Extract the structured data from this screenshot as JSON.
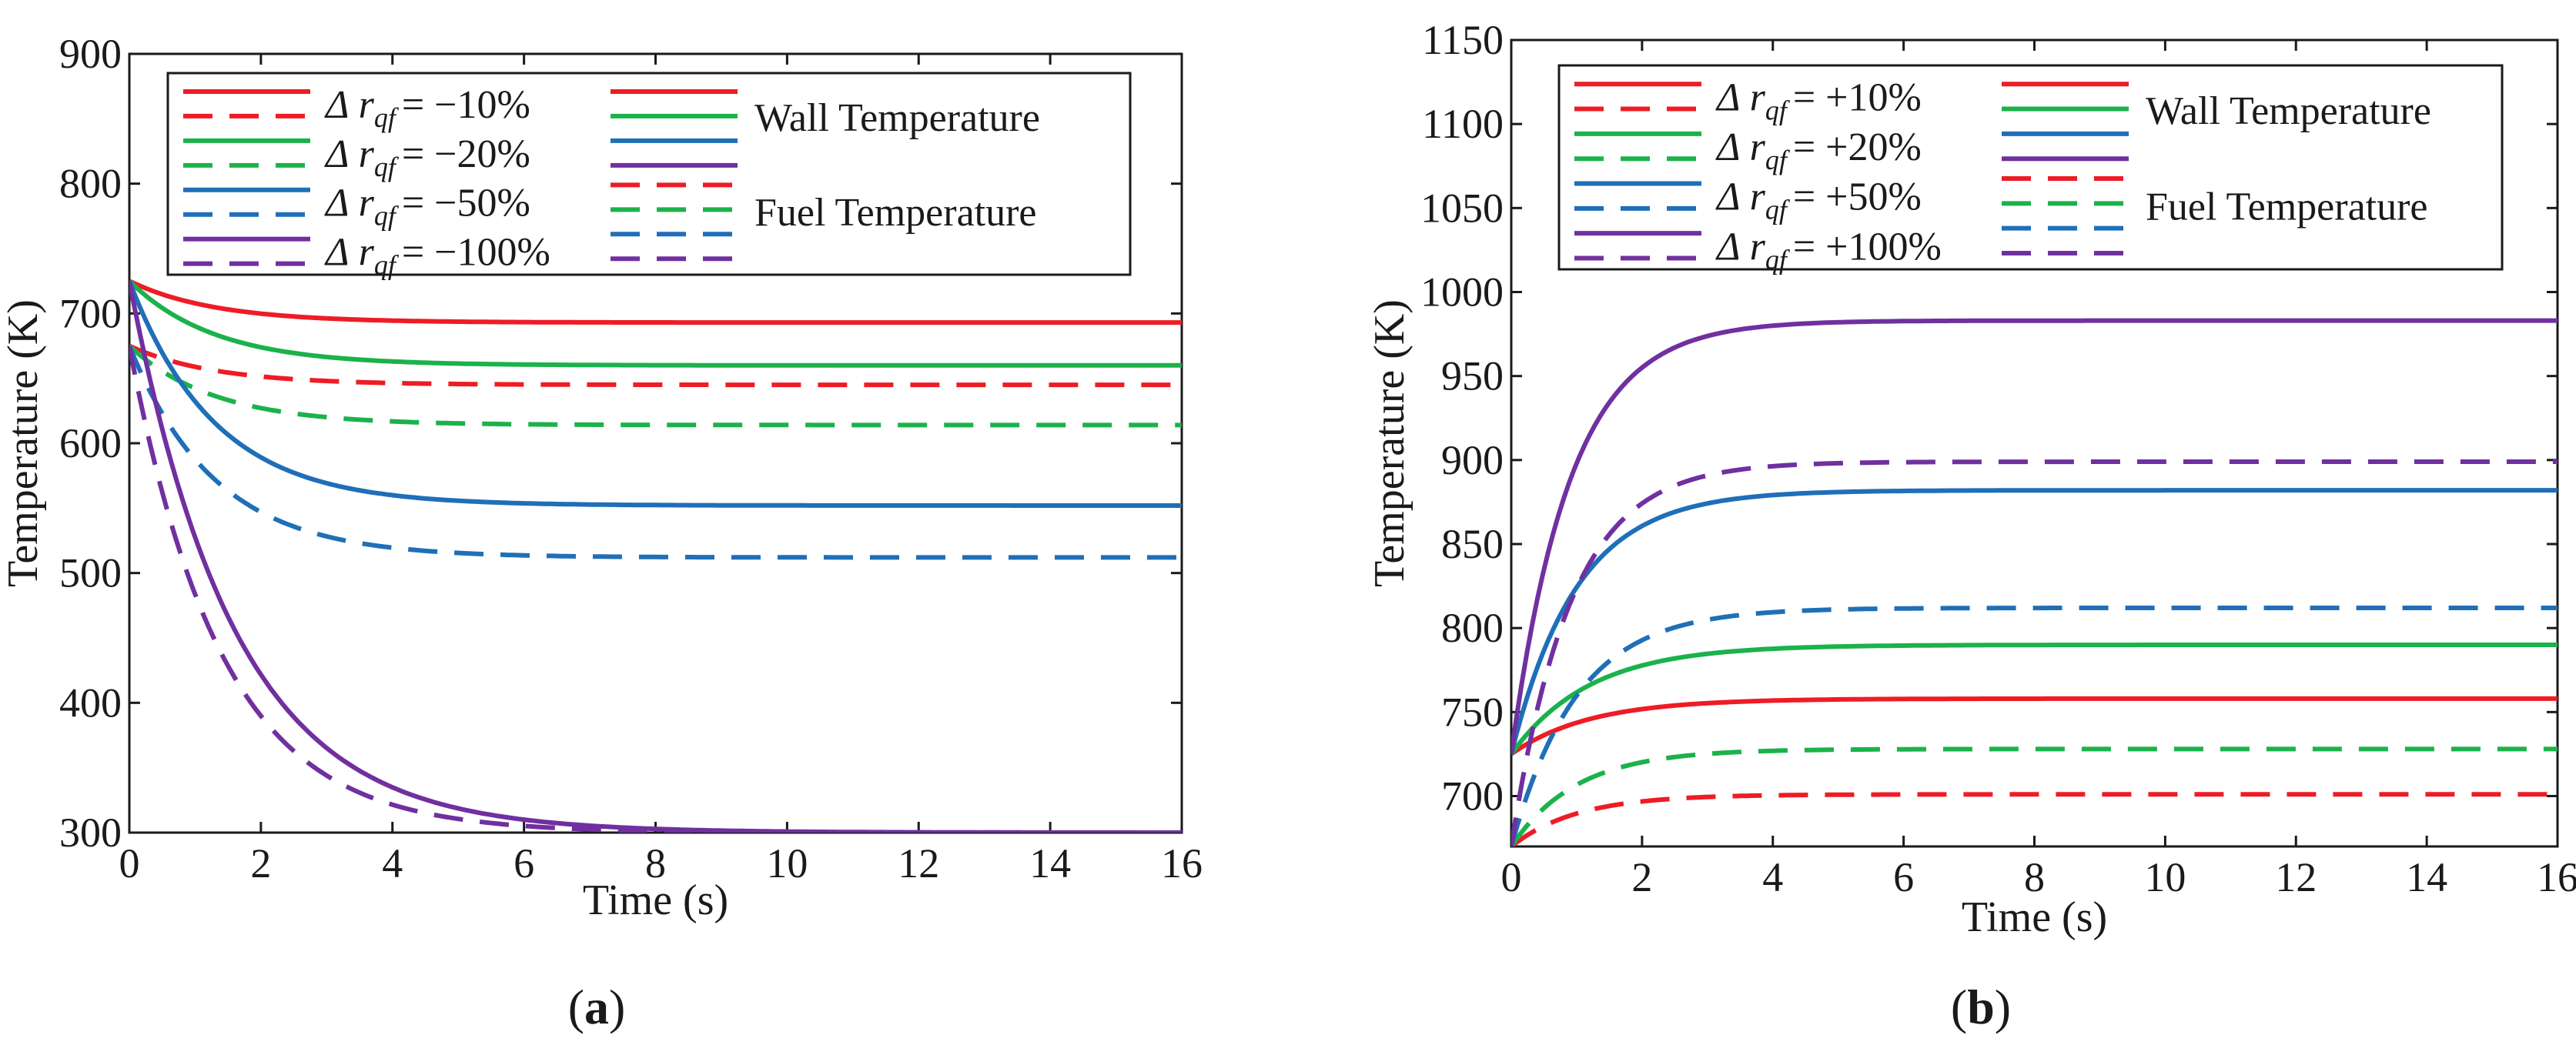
{
  "figure": {
    "caption_a_letter": "a",
    "caption_b_letter": "b"
  },
  "chart_data": [
    {
      "type": "line",
      "panel": "a",
      "title": "",
      "xlabel": "Time (s)",
      "ylabel": "Temperature (K)",
      "xlim": [
        0,
        16
      ],
      "ylim": [
        300,
        900
      ],
      "xticks": [
        0,
        2,
        4,
        6,
        8,
        10,
        12,
        14,
        16
      ],
      "yticks": [
        300,
        400,
        500,
        600,
        700,
        800,
        900
      ],
      "grid": false,
      "legend_position": "top",
      "legend_group_labels": {
        "wall": "Wall Temperature",
        "fuel": "Fuel Temperature"
      },
      "legend_prefix": "Δ r",
      "legend_subscript": "qf",
      "series": [
        {
          "name": "Δr_qf = −10%",
          "label_value": "= −10%",
          "color": "#ee1c25",
          "wall": {
            "start": 725,
            "end": 693,
            "tau": 1.3
          },
          "fuel": {
            "start": 675,
            "end": 645,
            "tau": 1.3
          }
        },
        {
          "name": "Δr_qf = −20%",
          "label_value": "= −20%",
          "color": "#1bb24b",
          "wall": {
            "start": 725,
            "end": 660,
            "tau": 1.3
          },
          "fuel": {
            "start": 675,
            "end": 614,
            "tau": 1.3
          }
        },
        {
          "name": "Δr_qf = −50%",
          "label_value": "= −50%",
          "color": "#1f6fb8",
          "wall": {
            "start": 725,
            "end": 552,
            "tau": 1.3
          },
          "fuel": {
            "start": 675,
            "end": 512,
            "tau": 1.3
          }
        },
        {
          "name": "Δr_qf = −100%",
          "label_value": "= −100%",
          "color": "#7030a0",
          "wall": {
            "start": 725,
            "end": 300,
            "tau": 1.6
          },
          "fuel": {
            "start": 675,
            "end": 300,
            "tau": 1.4
          }
        }
      ]
    },
    {
      "type": "line",
      "panel": "b",
      "title": "",
      "xlabel": "Time (s)",
      "ylabel": "Temperature (K)",
      "xlim": [
        0,
        16
      ],
      "ylim": [
        670,
        1150
      ],
      "xticks": [
        0,
        2,
        4,
        6,
        8,
        10,
        12,
        14,
        16
      ],
      "yticks": [
        700,
        750,
        800,
        850,
        900,
        950,
        1000,
        1050,
        1100,
        1150
      ],
      "grid": false,
      "legend_position": "top",
      "legend_group_labels": {
        "wall": "Wall Temperature",
        "fuel": "Fuel Temperature"
      },
      "legend_prefix": "Δ r",
      "legend_subscript": "qf",
      "series": [
        {
          "name": "Δr_qf = +10%",
          "label_value": "= +10%",
          "color": "#ee1c25",
          "wall": {
            "start": 725,
            "end": 758,
            "tau": 1.2
          },
          "fuel": {
            "start": 670,
            "end": 701,
            "tau": 1.0
          }
        },
        {
          "name": "Δr_qf = +20%",
          "label_value": "= +20%",
          "color": "#1bb24b",
          "wall": {
            "start": 725,
            "end": 790,
            "tau": 1.2
          },
          "fuel": {
            "start": 670,
            "end": 728,
            "tau": 1.0
          }
        },
        {
          "name": "Δr_qf = +50%",
          "label_value": "= +50%",
          "color": "#1f6fb8",
          "wall": {
            "start": 725,
            "end": 882,
            "tau": 1.0
          },
          "fuel": {
            "start": 670,
            "end": 812,
            "tau": 1.0
          }
        },
        {
          "name": "Δr_qf = +100%",
          "label_value": "= +100%",
          "color": "#7030a0",
          "wall": {
            "start": 725,
            "end": 983,
            "tau": 0.9
          },
          "fuel": {
            "start": 670,
            "end": 899,
            "tau": 0.9
          }
        }
      ]
    }
  ]
}
